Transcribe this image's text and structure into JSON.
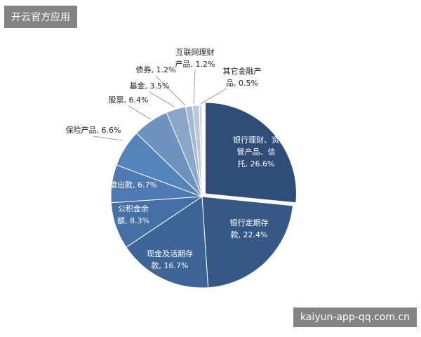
{
  "chart_data": {
    "type": "pie",
    "categories": [
      "银行理财、资管产品、信托, 26.6%",
      "银行定期存款, 22.4%",
      "现金及活期存款, 16.7%",
      "公积金余额, 8.3%",
      "借出款, 6.7%",
      "保险产品, 6.6%",
      "股票, 6.4%",
      "基金, 3.5%",
      "债券, 1.2%",
      "互联网理财产品, 1.2%",
      "其它金融产品, 0.5%"
    ],
    "values": [
      26.6,
      22.4,
      16.7,
      8.3,
      6.7,
      6.6,
      6.4,
      3.5,
      1.2,
      1.2,
      0.5
    ],
    "colors": [
      "#2f4d78",
      "#365887",
      "#3d6497",
      "#4570a5",
      "#4d7ab0",
      "#5584bb",
      "#6f93c1",
      "#8aa6c9",
      "#a6b8d2",
      "#bcc8da",
      "#cfd6e2"
    ]
  },
  "watermarks": [
    "开云官方应用",
    "kaiyun-app-qq.com.cn"
  ]
}
